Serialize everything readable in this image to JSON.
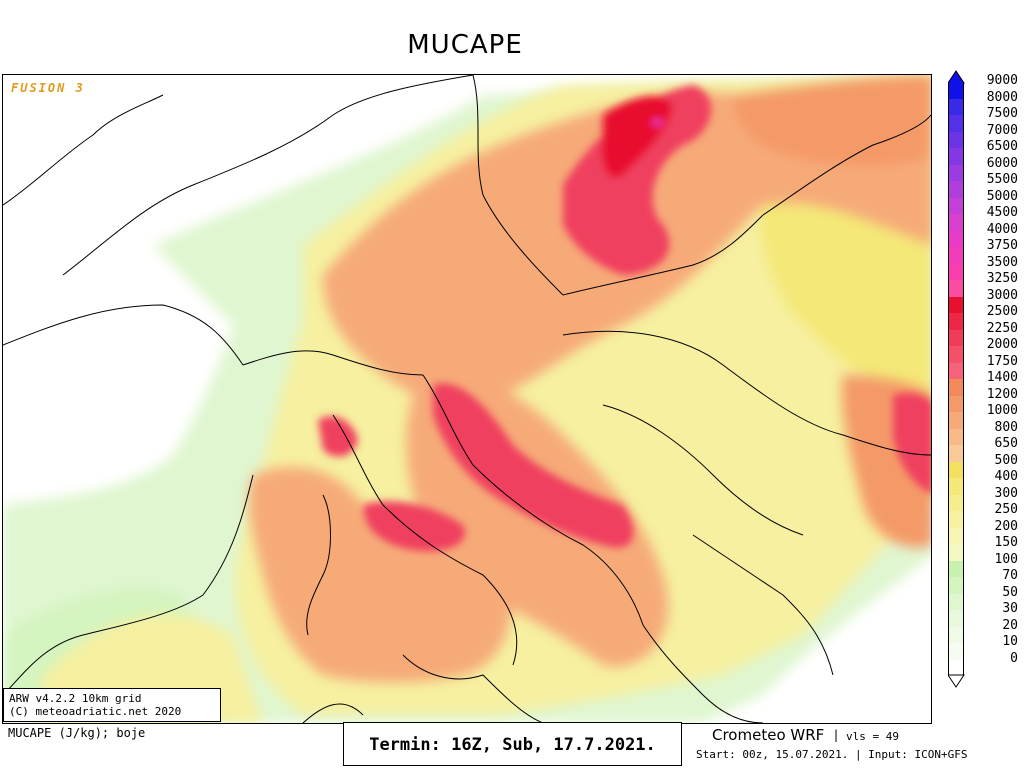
{
  "title": "MUCAPE",
  "watermark": "FUSION 3",
  "info_box": {
    "line1": "ARW v4.2.2 10km grid",
    "line2": "(C) meteoadriatic.net 2020"
  },
  "footer": {
    "units": "MUCAPE (J/kg); boje",
    "termin": "Termin: 16Z, Sub, 17.7.2021.",
    "model": "Crometeo WRF",
    "separator": "|",
    "levels": "vls = 49",
    "start": "Start: 00z, 15.07.2021. | Input: ICON+GFS"
  },
  "legend": {
    "labels": [
      "9000",
      "8000",
      "7500",
      "7000",
      "6500",
      "6000",
      "5500",
      "5000",
      "4500",
      "4000",
      "3750",
      "3500",
      "3250",
      "3000",
      "2500",
      "2250",
      "2000",
      "1750",
      "1400",
      "1200",
      "1000",
      "800",
      "650",
      "500",
      "400",
      "300",
      "250",
      "200",
      "150",
      "100",
      "70",
      "50",
      "30",
      "20",
      "10",
      "0"
    ],
    "colors": [
      "#1010e8",
      "#3a2ae8",
      "#5430e8",
      "#6c34e6",
      "#8438e4",
      "#9c3ce0",
      "#b03edc",
      "#c440d8",
      "#d840d0",
      "#e83cc8",
      "#f23cbc",
      "#f83eae",
      "#fa4ca2",
      "#e8102e",
      "#ec2846",
      "#f03c58",
      "#f4506a",
      "#f6627a",
      "#f48a5a",
      "#f49a68",
      "#f6aa78",
      "#f8ba88",
      "#f8ca98",
      "#f4e060",
      "#f4e878",
      "#f6ee8c",
      "#f8f2a0",
      "#f8f6b4",
      "#f6f8c4",
      "#c8f0b0",
      "#d4f4c0",
      "#e0f6d0",
      "#e8f8dc",
      "#f0fae8",
      "#f6fcf2",
      "#ffffff"
    ],
    "top_arrow_color": "#1010e8",
    "bottom_arrow_color": "#ffffff"
  }
}
